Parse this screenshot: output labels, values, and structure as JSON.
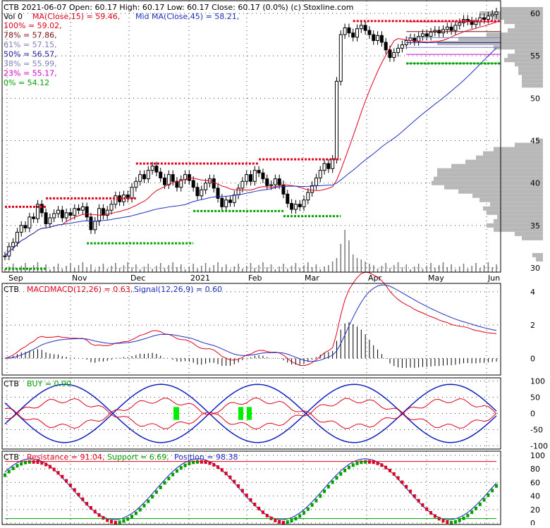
{
  "header": {
    "line1": "CTB  2021-06-07 Open: 60.17  High: 60.17  Low: 60.17  Close: 60.17 (0.0%)  (c) Stoxline.com",
    "vol_label": "Vol 0",
    "ma15_label": "MA(Close,15) = 59.46,",
    "ma45_label": "Mid MA(Close,45) = 58.21,"
  },
  "fib_levels": [
    {
      "label": "100% = 59.02,",
      "color": "#e0001c"
    },
    {
      "label": "78% = 57.86,",
      "color": "#7d0c10"
    },
    {
      "label": "61% = 57.15,",
      "color": "#8080c0"
    },
    {
      "label": "50% = 56.57,",
      "color": "#1a1aa0"
    },
    {
      "label": "38% = 55.99,",
      "color": "#8080c0"
    },
    {
      "label": "23% = 55.17,",
      "color": "#d000d0"
    },
    {
      "label": "0% = 54.12",
      "color": "#00a000"
    }
  ],
  "colors": {
    "ma15": "#e0001c",
    "ma45": "#2030c0",
    "resistance": "#e0001c",
    "support": "#00a000",
    "volume_profile": "#b8b8b8",
    "grid": "#404040",
    "frame": "#000000",
    "buy_highlight": "#00ee00"
  },
  "chart_data": [
    {
      "type": "candlestick",
      "title": "CTB",
      "ylim": [
        29.5,
        61.5
      ],
      "y_ticks": [
        "30",
        "35",
        "40",
        "45",
        "50",
        "55",
        "60"
      ],
      "x_tick_labels": [
        "Sep",
        "Nov",
        "Dec",
        "2021",
        "Feb",
        "Mar",
        "Apr",
        "May",
        "Jun"
      ],
      "close_series": [
        31.4,
        32.5,
        33.0,
        34.2,
        35.0,
        34.7,
        36.0,
        35.8,
        37.5,
        36.5,
        35.2,
        35.9,
        36.4,
        36.8,
        35.9,
        36.5,
        36.2,
        37.0,
        36.8,
        37.2,
        36.0,
        34.5,
        35.5,
        37.0,
        36.2,
        36.8,
        37.5,
        38.5,
        37.8,
        38.6,
        38.2,
        39.5,
        40.2,
        41.0,
        40.5,
        41.5,
        42.0,
        41.3,
        40.6,
        39.8,
        41.0,
        40.2,
        39.5,
        40.4,
        41.0,
        40.3,
        39.5,
        38.5,
        39.2,
        40.0,
        40.5,
        39.4,
        38.2,
        37.2,
        38.0,
        37.7,
        38.6,
        39.4,
        40.2,
        41.0,
        40.2,
        41.5,
        41.2,
        40.5,
        39.7,
        39.8,
        40.5,
        39.8,
        38.7,
        37.6,
        36.9,
        37.5,
        37.2,
        38.0,
        38.9,
        39.7,
        40.6,
        41.5,
        42.3,
        41.7,
        42.8,
        52.0,
        57.5,
        58.3,
        57.7,
        57.2,
        58.2,
        58.6,
        58.0,
        57.5,
        56.8,
        57.4,
        56.6,
        55.7,
        54.8,
        55.4,
        55.9,
        56.3,
        56.8,
        57.1,
        56.7,
        57.3,
        57.6,
        57.3,
        57.8,
        58.0,
        57.7,
        58.1,
        58.4,
        58.0,
        58.6,
        58.9,
        59.3,
        59.1,
        58.7,
        59.0,
        59.5,
        59.3,
        59.7,
        59.9,
        60.17
      ],
      "ma15_last": 59.46,
      "ma45_last": 58.21,
      "fib_values": [
        59.02,
        57.86,
        57.15,
        56.57,
        55.99,
        55.17,
        54.12
      ],
      "resistance_segments": [
        {
          "from": 0,
          "to": 10,
          "y": 37.2
        },
        {
          "from": 10,
          "to": 32,
          "y": 38.2
        },
        {
          "from": 32,
          "to": 62,
          "y": 42.3
        },
        {
          "from": 62,
          "to": 82,
          "y": 42.8
        },
        {
          "from": 85,
          "to": 121,
          "y": 59.1
        }
      ],
      "support_segments": [
        {
          "from": 0,
          "to": 10,
          "y": 29.9
        },
        {
          "from": 20,
          "to": 46,
          "y": 32.9
        },
        {
          "from": 46,
          "to": 68,
          "y": 36.7
        },
        {
          "from": 68,
          "to": 82,
          "y": 36.1
        },
        {
          "from": 98,
          "to": 121,
          "y": 54.1
        }
      ]
    },
    {
      "type": "line",
      "title": "CTB",
      "label": "MACDMACD(12,26) = 0.63,",
      "signal_label": "Signal(12,26,9) = 0.60",
      "ylim": [
        -1,
        4.5
      ],
      "y_ticks": [
        "0",
        "2",
        "4"
      ],
      "macd_last": 0.63,
      "signal_last": 0.6
    },
    {
      "type": "line",
      "title": "CTB",
      "label": "BUY = 0.00",
      "ylim": [
        -110,
        110
      ],
      "y_ticks": [
        "100",
        "50",
        "0",
        "-50",
        "-100"
      ]
    },
    {
      "type": "line",
      "title": "CTB",
      "resistance_label": "Resistance = 91.04,",
      "support_label": "Support = 6.69,",
      "position_label": "Position = 98.38",
      "ylim": [
        0,
        100
      ],
      "y_ticks": [
        "100",
        "80",
        "60",
        "40",
        "20",
        "0"
      ],
      "resistance_value": 91.04,
      "support_value": 6.69,
      "position_value": 98.38
    }
  ]
}
